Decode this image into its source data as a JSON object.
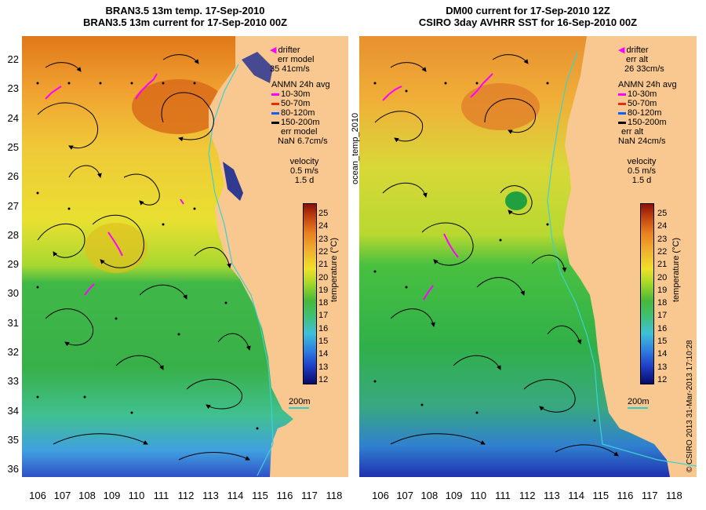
{
  "left_panel": {
    "title_line1": "BRAN3.5 13m temp. 17-Sep-2010",
    "title_line2": "BRAN3.5 13m current for 17-Sep-2010 00Z",
    "drifter": "drifter",
    "err_label": "err model",
    "err_value": "35 41cm/s",
    "anmn_title": "ANMN 24h avg",
    "anmn_items": [
      "10-30m",
      "50-70m",
      "80-120m",
      "150-200m"
    ],
    "anmn_err_label": "err model",
    "anmn_err_value": "NaN 6.7cm/s",
    "velocity_label": "velocity",
    "velocity_speed": "0.5 m/s",
    "velocity_days": "1.5 d",
    "scale_label": "200m"
  },
  "right_panel": {
    "title_line1": "DM00 current for 17-Sep-2010 12Z",
    "title_line2": "CSIRO 3day AVHRR SST for 16-Sep-2010 00Z",
    "drifter": "drifter",
    "err_label": "err alt",
    "err_value": "26 33cm/s",
    "anmn_title": "ANMN 24h avg",
    "anmn_items": [
      "10-30m",
      "50-70m",
      "80-120m",
      "150-200m"
    ],
    "anmn_err_label": "err alt",
    "anmn_err_value": "NaN 24cm/s",
    "velocity_label": "velocity",
    "velocity_speed": "0.5 m/s",
    "velocity_days": "1.5 d",
    "scale_label": "200m"
  },
  "anmn_colors": [
    "#ff00ff",
    "#e03010",
    "#1060ff",
    "#000000"
  ],
  "y_ticks": [
    "22",
    "23",
    "24",
    "25",
    "26",
    "27",
    "28",
    "29",
    "30",
    "31",
    "32",
    "33",
    "34",
    "35",
    "36"
  ],
  "x_ticks": [
    "106",
    "107",
    "108",
    "109",
    "110",
    "111",
    "112",
    "113",
    "114",
    "115",
    "116",
    "117",
    "118"
  ],
  "colorbar_ticks": [
    "25",
    "24",
    "23",
    "22",
    "21",
    "20",
    "19",
    "18",
    "17",
    "16",
    "15",
    "14",
    "13",
    "12"
  ],
  "colorbar_label": "temperature (°C)",
  "side_label": "ocean_temp_2010",
  "credit": "© CSIRO 2013   31-Mar-2013 17:10:28",
  "colors": {
    "land": "#f8c890",
    "coastline": "#40c8c0",
    "isobath": "#40d0d0"
  }
}
